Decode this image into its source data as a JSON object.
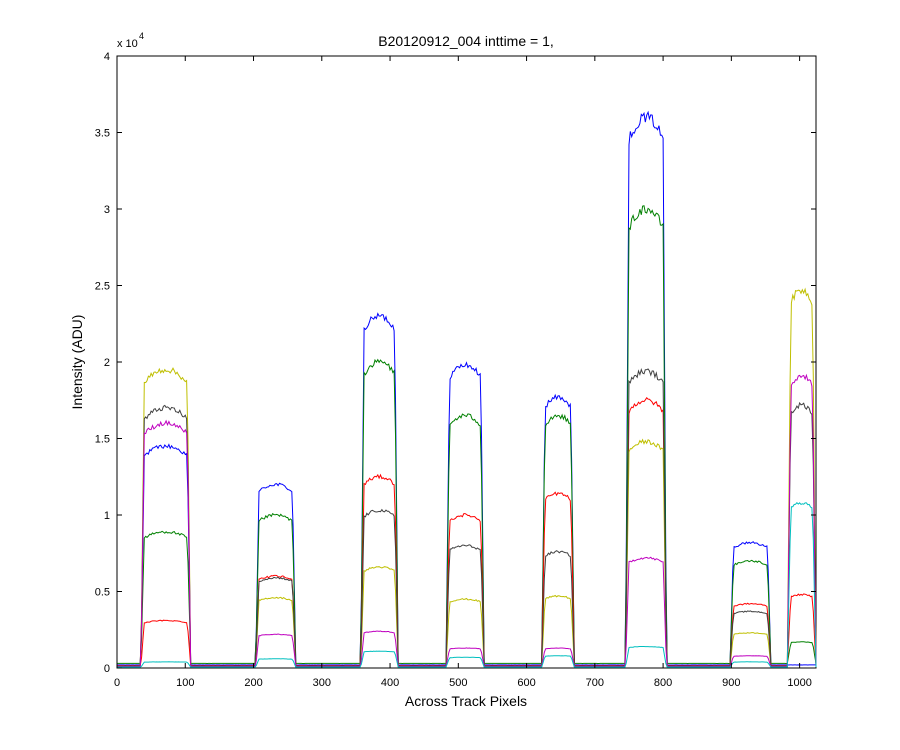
{
  "chart_data": {
    "type": "line",
    "title": "B20120912_004 inttime = 1,",
    "xlabel": "Across Track Pixels",
    "ylabel": "Intensity (ADU)",
    "y_exponent_label": "x 10",
    "y_exponent_power": "4",
    "xlim": [
      0,
      1024
    ],
    "ylim": [
      0,
      40000
    ],
    "xticks": [
      0,
      100,
      200,
      300,
      400,
      500,
      600,
      700,
      800,
      900,
      1000
    ],
    "yticks": [
      0,
      5000,
      10000,
      15000,
      20000,
      25000,
      30000,
      35000,
      40000
    ],
    "ytick_labels": [
      "0",
      "0.5",
      "1",
      "1.5",
      "2",
      "2.5",
      "3",
      "3.5",
      "4"
    ],
    "grid": false,
    "blocks": [
      {
        "x_start": 35,
        "x_end": 108
      },
      {
        "x_start": 203,
        "x_end": 262
      },
      {
        "x_start": 357,
        "x_end": 412
      },
      {
        "x_start": 482,
        "x_end": 538
      },
      {
        "x_start": 622,
        "x_end": 670
      },
      {
        "x_start": 745,
        "x_end": 805
      },
      {
        "x_start": 898,
        "x_end": 958
      },
      {
        "x_start": 982,
        "x_end": 1024
      }
    ],
    "series": [
      {
        "color": "#0000ff",
        "baseline": 200,
        "levels": [
          14500,
          12000,
          23000,
          19800,
          17700,
          36000,
          8200,
          0
        ]
      },
      {
        "color": "#008000",
        "baseline": 300,
        "levels": [
          8900,
          10000,
          20000,
          16500,
          16500,
          30000,
          7000,
          1700
        ]
      },
      {
        "color": "#ff0000",
        "baseline": 150,
        "levels": [
          3100,
          6000,
          12500,
          10000,
          11400,
          17500,
          4200,
          4800
        ]
      },
      {
        "color": "#bfbf00",
        "baseline": 100,
        "levels": [
          19500,
          4600,
          6600,
          4500,
          4700,
          14800,
          2300,
          24700
        ]
      },
      {
        "color": "#404040",
        "baseline": 120,
        "levels": [
          17000,
          5900,
          10300,
          8000,
          7600,
          19400,
          3700,
          17200
        ]
      },
      {
        "color": "#bf00bf",
        "baseline": 80,
        "levels": [
          16000,
          2200,
          2400,
          1300,
          1300,
          7200,
          800,
          19100
        ]
      },
      {
        "color": "#00bfbf",
        "baseline": 60,
        "levels": [
          400,
          600,
          1100,
          700,
          800,
          1400,
          400,
          10800
        ]
      }
    ]
  }
}
